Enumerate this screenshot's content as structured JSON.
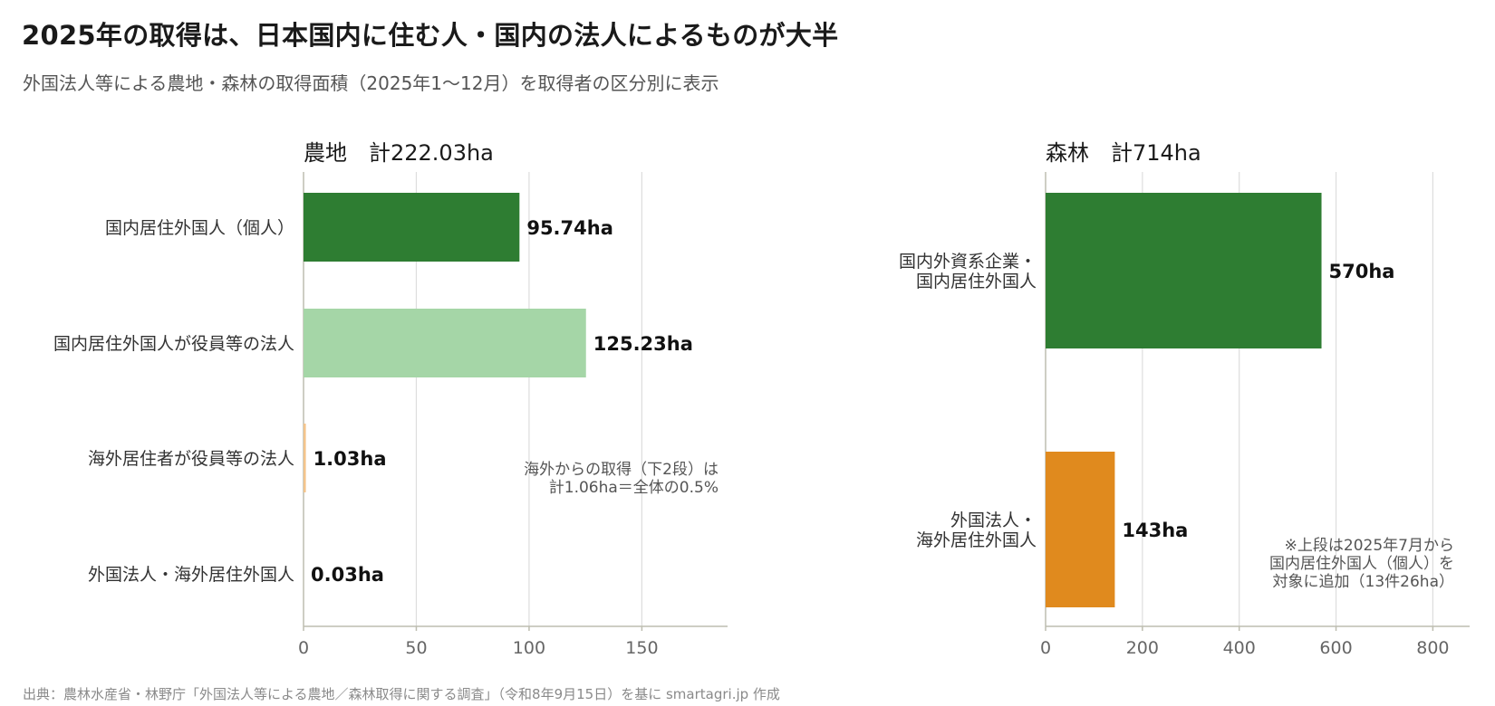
{
  "title": "2025年の取得は、日本国内に住む人・国内の法人によるものが大半",
  "subtitle": "外国法人等による農地・森林の取得面積（2025年1〜12月）を取得者の区分別に表示",
  "source": "出典：農林水産省・林野庁「外国法人等による農地／森林取得に関する調査」（令和8年9月15日）を基に smartagri.jp 作成",
  "chart_data": [
    {
      "type": "bar",
      "orientation": "horizontal",
      "title": "農地　計222.03ha",
      "categories": [
        "国内居住外国人（個人）",
        "国内居住外国人が役員等の法人",
        "海外居住者が役員等の法人",
        "外国法人・海外居住外国人"
      ],
      "values": [
        95.74,
        125.23,
        1.03,
        0.03
      ],
      "value_labels": [
        "95.74ha",
        "125.23ha",
        "1.03ha",
        "0.03ha"
      ],
      "colors": [
        "#2e7d32",
        "#a5d6a7",
        "#f4c48c",
        "#f4c48c"
      ],
      "xlim": [
        0,
        188
      ],
      "xticks": [
        0,
        50,
        100,
        150
      ],
      "grid": true,
      "annotation": [
        "海外からの取得（下2段）は",
        "計1.06ha＝全体の0.5%"
      ]
    },
    {
      "type": "bar",
      "orientation": "horizontal",
      "title": "森林　計714ha",
      "categories": [
        [
          "国内外資系企業・",
          "国内居住外国人"
        ],
        [
          "外国法人・",
          "海外居住外国人"
        ]
      ],
      "values": [
        570,
        143
      ],
      "value_labels": [
        "570ha",
        "143ha"
      ],
      "colors": [
        "#2e7d32",
        "#e08a1e"
      ],
      "xlim": [
        0,
        876
      ],
      "xticks": [
        0,
        200,
        400,
        600,
        800
      ],
      "grid": true,
      "annotation": [
        "※上段は2025年7月から",
        "国内居住外国人（個人）を",
        "対象に追加（13件26ha）"
      ]
    }
  ]
}
